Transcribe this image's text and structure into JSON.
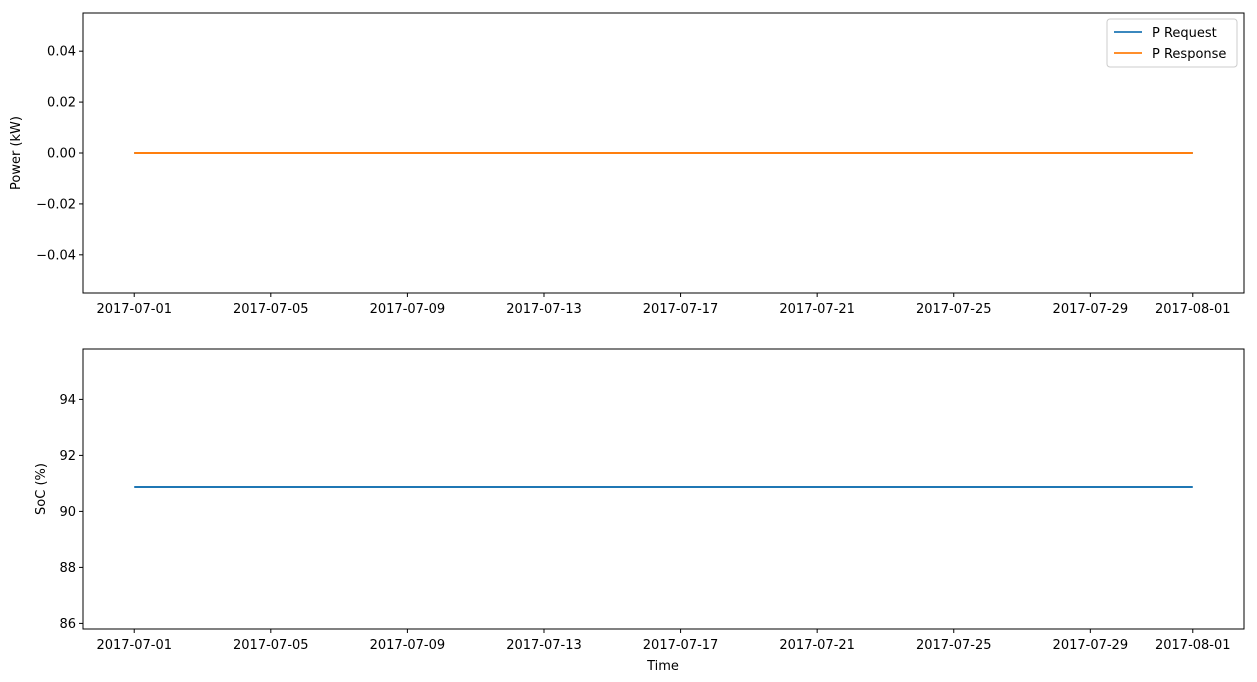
{
  "chart_data": [
    {
      "type": "line",
      "ylabel": "Power (kW)",
      "xlabel": "",
      "ylim": [
        -0.055,
        0.055
      ],
      "yticks": [
        -0.04,
        -0.02,
        0.0,
        0.02,
        0.04
      ],
      "ytick_labels": [
        "−0.04",
        "−0.02",
        "0.00",
        "0.02",
        "0.04"
      ],
      "xlim": [
        "2017-06-29T12:00",
        "2017-08-02T12:00"
      ],
      "xticks": [
        "2017-07-01",
        "2017-07-05",
        "2017-07-09",
        "2017-07-13",
        "2017-07-17",
        "2017-07-21",
        "2017-07-25",
        "2017-07-29",
        "2017-08-01"
      ],
      "legend_position": "top-right",
      "grid": false,
      "series": [
        {
          "name": "P Request",
          "color": "#1f77b4",
          "x": [
            "2017-07-01",
            "2017-08-01"
          ],
          "y": [
            0,
            0
          ]
        },
        {
          "name": "P Response",
          "color": "#ff7f0e",
          "x": [
            "2017-07-01",
            "2017-08-01"
          ],
          "y": [
            0,
            0
          ]
        }
      ]
    },
    {
      "type": "line",
      "ylabel": "SoC (%)",
      "xlabel": "Time",
      "ylim": [
        85.8,
        95.8
      ],
      "yticks": [
        86,
        88,
        90,
        92,
        94
      ],
      "ytick_labels": [
        "86",
        "88",
        "90",
        "92",
        "94"
      ],
      "xlim": [
        "2017-06-29T12:00",
        "2017-08-02T12:00"
      ],
      "xticks": [
        "2017-07-01",
        "2017-07-05",
        "2017-07-09",
        "2017-07-13",
        "2017-07-17",
        "2017-07-21",
        "2017-07-25",
        "2017-07-29",
        "2017-08-01"
      ],
      "grid": false,
      "series": [
        {
          "color": "#1f77b4",
          "x": [
            "2017-07-01",
            "2017-08-01"
          ],
          "y": [
            90.87,
            90.87
          ]
        }
      ]
    }
  ]
}
